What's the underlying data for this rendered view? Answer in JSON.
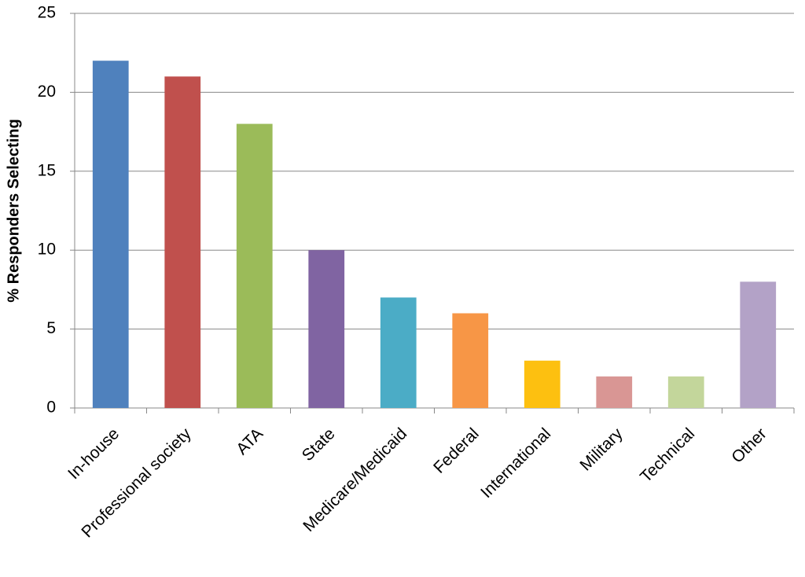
{
  "chart_data": {
    "type": "bar",
    "y_label": "% Responders Selecting",
    "categories": [
      "In-house",
      "Professional society",
      "ATA",
      "State",
      "Medicare/Medicaid",
      "Federal",
      "International",
      "Military",
      "Technical",
      "Other"
    ],
    "values": [
      22,
      21,
      18,
      10,
      7,
      6,
      3,
      2,
      2,
      8
    ],
    "colors": [
      "#4f81bd",
      "#c0504d",
      "#9bbb59",
      "#8064a2",
      "#4bacc6",
      "#f79646",
      "#fdc010",
      "#d99694",
      "#c3d69b",
      "#b3a2c7"
    ],
    "ylim": [
      0,
      25
    ],
    "yticks": [
      0,
      5,
      10,
      15,
      20,
      25
    ],
    "grid": true
  }
}
